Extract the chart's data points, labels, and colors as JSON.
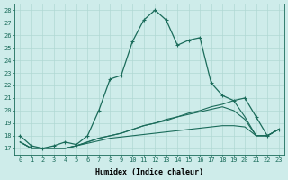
{
  "xlabel": "Humidex (Indice chaleur)",
  "background_color": "#ceecea",
  "grid_color": "#b0d8d4",
  "line_color": "#1a6b5a",
  "xlim": [
    -0.5,
    23.5
  ],
  "ylim": [
    16.5,
    28.5
  ],
  "yticks": [
    17,
    18,
    19,
    20,
    21,
    22,
    23,
    24,
    25,
    26,
    27,
    28
  ],
  "xticks": [
    0,
    1,
    2,
    3,
    4,
    5,
    6,
    7,
    8,
    9,
    10,
    11,
    12,
    13,
    14,
    15,
    16,
    17,
    18,
    19,
    20,
    21,
    22,
    23
  ],
  "series1": [
    18.0,
    17.2,
    17.0,
    17.2,
    17.5,
    17.3,
    18.0,
    20.0,
    22.5,
    22.8,
    25.5,
    27.2,
    28.0,
    27.2,
    25.2,
    25.6,
    25.8,
    22.2,
    21.2,
    20.8,
    21.0,
    19.5,
    18.0,
    18.5
  ],
  "series2": [
    17.5,
    17.0,
    17.0,
    17.0,
    17.0,
    17.2,
    17.5,
    17.8,
    18.0,
    18.2,
    18.5,
    18.8,
    19.0,
    19.3,
    19.5,
    19.8,
    20.0,
    20.3,
    20.5,
    20.8,
    19.5,
    18.0,
    18.0,
    18.5
  ],
  "series3": [
    17.5,
    17.0,
    17.0,
    17.0,
    17.0,
    17.2,
    17.5,
    17.8,
    18.0,
    18.2,
    18.5,
    18.8,
    19.0,
    19.2,
    19.5,
    19.7,
    19.9,
    20.1,
    20.3,
    20.0,
    19.3,
    18.0,
    18.0,
    18.5
  ],
  "series4": [
    17.5,
    17.0,
    17.0,
    17.0,
    17.0,
    17.2,
    17.4,
    17.6,
    17.8,
    17.9,
    18.0,
    18.1,
    18.2,
    18.3,
    18.4,
    18.5,
    18.6,
    18.7,
    18.8,
    18.8,
    18.7,
    18.0,
    18.0,
    18.5
  ]
}
